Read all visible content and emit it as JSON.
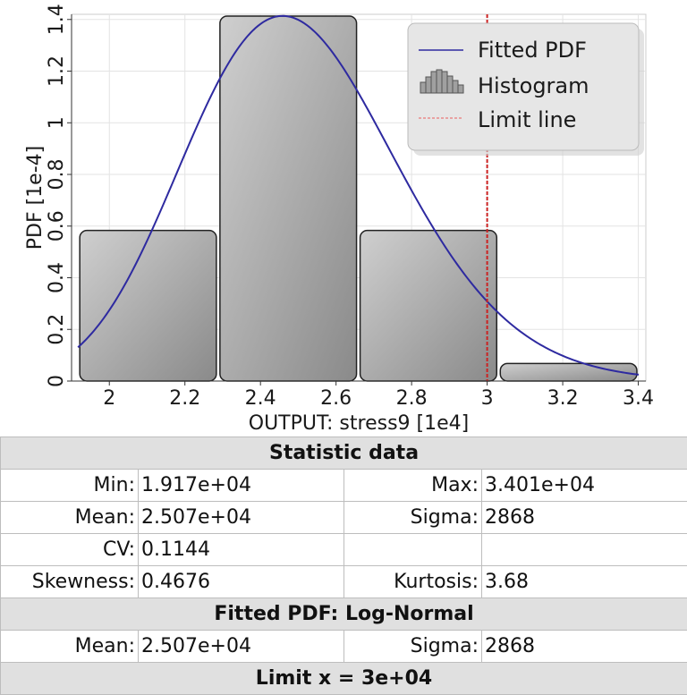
{
  "chart_data": {
    "type": "bar",
    "xlabel": "OUTPUT: stress9 [1e4]",
    "ylabel": "PDF [1e-4]",
    "xlim": [
      1.9,
      3.42
    ],
    "ylim": [
      0,
      1.42
    ],
    "x_ticks": [
      2,
      2.2,
      2.4,
      2.6,
      2.8,
      3,
      3.2,
      3.4
    ],
    "x_tick_labels": [
      "2",
      "2.2",
      "2.4",
      "2.6",
      "2.8",
      "3",
      "3.2",
      "3.4"
    ],
    "y_ticks": [
      0,
      0.2,
      0.4,
      0.6,
      0.8,
      1,
      1.2,
      1.4
    ],
    "y_tick_labels": [
      "0",
      "0.2",
      "0.4",
      "0.6",
      "0.8",
      "1",
      "1.2",
      "1.4"
    ],
    "grid": true,
    "legend_position": "top-right",
    "legend": [
      "Fitted PDF",
      "Histogram",
      "Limit line"
    ],
    "histogram": {
      "name": "Histogram",
      "bins": [
        {
          "x0": 1.917,
          "x1": 2.288,
          "value": 0.59
        },
        {
          "x0": 2.288,
          "x1": 2.659,
          "value": 1.42
        },
        {
          "x0": 2.659,
          "x1": 3.03,
          "value": 0.59
        },
        {
          "x0": 3.03,
          "x1": 3.401,
          "value": 0.075
        }
      ]
    },
    "fitted_pdf": {
      "name": "Fitted PDF",
      "distribution": "Log-Normal",
      "mean": 2.507,
      "sigma": 0.2868,
      "x_start": 1.917,
      "x_end": 3.401,
      "color": "#2e2aa0"
    },
    "limit_line": {
      "name": "Limit line",
      "x": 3.0,
      "color": "#cc2222"
    }
  },
  "table": {
    "statistic_header": "Statistic data",
    "min_label": "Min:",
    "min_value": "1.917e+04",
    "max_label": "Max:",
    "max_value": "3.401e+04",
    "mean_label": "Mean:",
    "mean_value": "2.507e+04",
    "sigma_label": "Sigma:",
    "sigma_value": "2868",
    "cv_label": "CV:",
    "cv_value": "0.1144",
    "skewness_label": "Skewness:",
    "skewness_value": "0.4676",
    "kurtosis_label": "Kurtosis:",
    "kurtosis_value": "3.68",
    "fitted_header": "Fitted PDF: Log-Normal",
    "fitted_mean_label": "Mean:",
    "fitted_mean_value": "2.507e+04",
    "fitted_sigma_label": "Sigma:",
    "fitted_sigma_value": "2868",
    "limit_header": "Limit x = 3e+04"
  }
}
